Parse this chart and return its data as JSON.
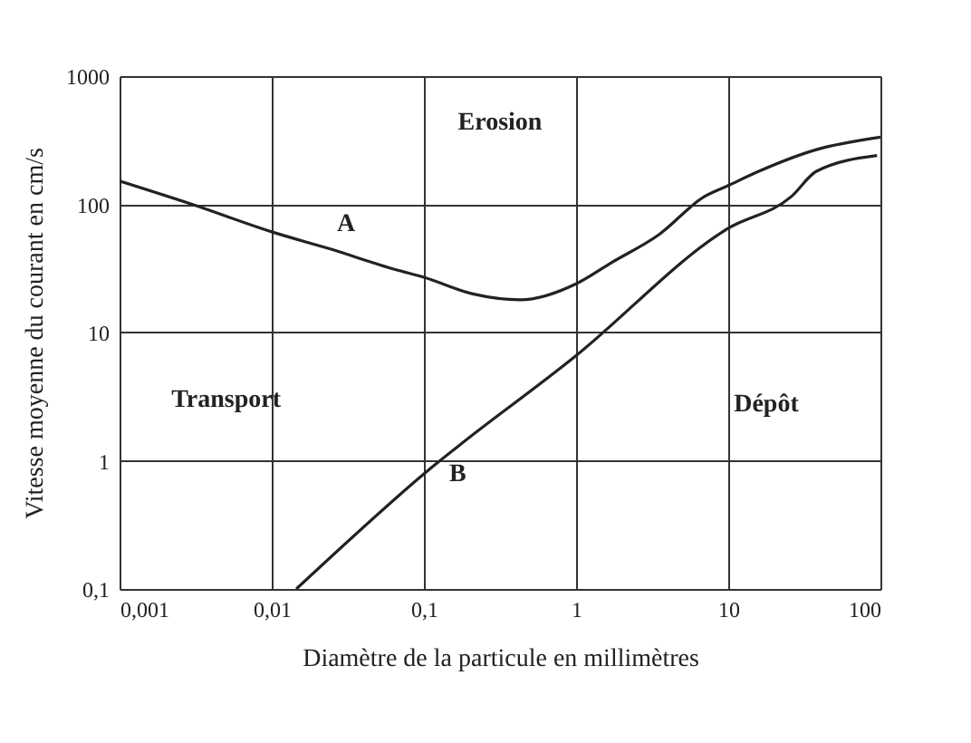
{
  "chart_data": {
    "type": "line",
    "xlabel": "Diamètre de la particule en millimètres",
    "ylabel": "Vitesse moyenne du courant en cm/s",
    "log": "xy",
    "grid": true,
    "marker": "none",
    "line_style": "solid",
    "xlim": [
      0.001,
      100
    ],
    "ylim": [
      0.1,
      1000
    ],
    "xticks": [
      {
        "value": 0.001,
        "label": "0,001"
      },
      {
        "value": 0.01,
        "label": "0,01"
      },
      {
        "value": 0.1,
        "label": "0,1"
      },
      1,
      10,
      100
    ],
    "yticks": [
      {
        "value": 0.1,
        "label": "0,1"
      },
      1,
      10,
      100,
      1000
    ],
    "series": [
      {
        "name": "A",
        "color": "#222222",
        "x": [
          0.001,
          0.003,
          0.01,
          0.024,
          0.065,
          0.1,
          0.21,
          0.43,
          1,
          1.7,
          3.5,
          6.9,
          10,
          15.4,
          38,
          100
        ],
        "values": [
          152,
          100,
          61,
          45,
          31,
          27,
          20,
          18,
          24,
          35,
          58,
          114,
          140,
          178,
          267,
          334
        ]
      },
      {
        "name": "B",
        "color": "#222222",
        "x": [
          0.0145,
          0.1,
          1,
          10,
          26,
          38,
          95
        ],
        "values": [
          0.1,
          0.79,
          6.6,
          65,
          115,
          181,
          240
        ]
      }
    ],
    "annotations": [
      "Erosion",
      "Transport",
      "Dépôt"
    ]
  }
}
